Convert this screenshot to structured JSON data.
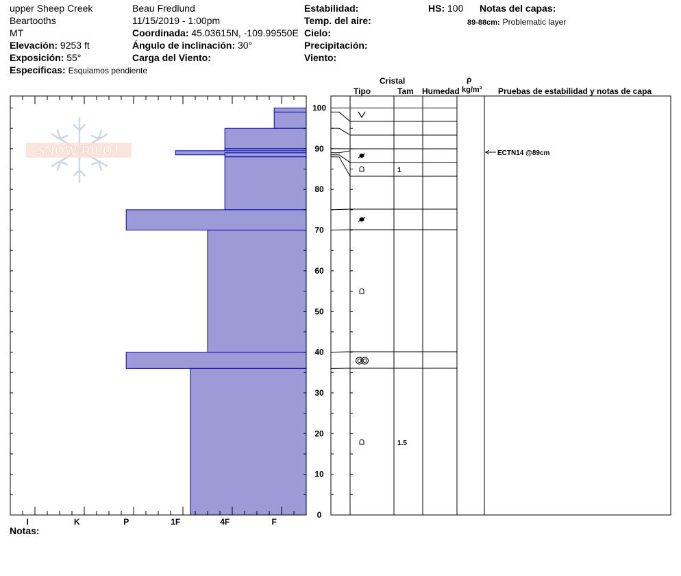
{
  "header": {
    "location": "upper Sheep Creek",
    "range": "Beartooths",
    "state": "MT",
    "elevation_label": "Elevación:",
    "elevation_value": "9253 ft",
    "aspect_label": "Exposición:",
    "aspect_value": "55°",
    "specifics_label": "Especificas:",
    "specifics_value": "Esquiamos pendiente",
    "observer": "Beau  Fredlund",
    "datetime": "11/15/2019 - 1:00pm",
    "coord_label": "Coordinada:",
    "coord_value": "45.03615N, -109.99550E",
    "slope_label": "Ángulo de inclinación:",
    "slope_value": "30°",
    "wind_load_label": "Carga del Viento:",
    "stability_label": "Estabilidad:",
    "air_temp_label": "Temp. del aire:",
    "sky_label": "Cielo:",
    "precip_label": "Precipitación:",
    "wind_label": "Viento:",
    "hs_label": "HS:",
    "hs_value": "100",
    "layer_notes_label": "Notas del capas:",
    "layer_note_range": "89-88cm:",
    "layer_note_text": "Problematic layer"
  },
  "logo_text": "SNOW PILOT",
  "columns": {
    "crystal": "Cristal",
    "type": "Tipo",
    "size": "Tam",
    "moisture": "Humedad",
    "rho": "ρ",
    "density_unit": "kg/m³",
    "tests": "Pruebas de estabilidad y notas de capa"
  },
  "notes_label": "Notas:",
  "chart_data": {
    "type": "bar",
    "y_ticks": [
      0,
      10,
      20,
      30,
      40,
      50,
      60,
      70,
      80,
      90,
      100
    ],
    "ylim": [
      0,
      100
    ],
    "hardness_categories": [
      "I",
      "K",
      "P",
      "1F",
      "4F",
      "F"
    ],
    "hardness_scale_max": 6,
    "layers": [
      {
        "top": 100,
        "bottom": 99,
        "hardness": 0.65
      },
      {
        "top": 99,
        "bottom": 95,
        "hardness": 0.65
      },
      {
        "top": 95,
        "bottom": 90,
        "hardness": 1.65
      },
      {
        "top": 90,
        "bottom": 89,
        "hardness": 1.65
      },
      {
        "top": 89.5,
        "bottom": 88.5,
        "hardness": 2.65
      },
      {
        "top": 89,
        "bottom": 88,
        "hardness": 1.65
      },
      {
        "top": 88,
        "bottom": 75,
        "hardness": 1.65
      },
      {
        "top": 75,
        "bottom": 70,
        "hardness": 3.65
      },
      {
        "top": 70,
        "bottom": 40,
        "hardness": 2
      },
      {
        "top": 40,
        "bottom": 36,
        "hardness": 3.65
      },
      {
        "top": 36,
        "bottom": 0,
        "hardness": 2.35
      }
    ],
    "boundaries": [
      100,
      96.5,
      93,
      90,
      88,
      86.5,
      83,
      75,
      70,
      40,
      36,
      0
    ],
    "crystals": [
      {
        "y": 98.5,
        "symbol": "precipitation-particle",
        "size": ""
      },
      {
        "y": 88.5,
        "symbol": "decomposing-fragment",
        "size": ""
      },
      {
        "y": 85,
        "symbol": "rounded-grain",
        "size": "1"
      },
      {
        "y": 72.5,
        "symbol": "decomposing-fragment",
        "size": ""
      },
      {
        "y": 55,
        "symbol": "rounded-grain",
        "size": ""
      },
      {
        "y": 38,
        "symbol": "melt-freeze-crust",
        "size": ""
      },
      {
        "y": 18,
        "symbol": "rounded-grain",
        "size": "1.5"
      }
    ],
    "stability_tests": [
      {
        "depth": 89,
        "label": "ECTN14 @89cm"
      }
    ]
  }
}
